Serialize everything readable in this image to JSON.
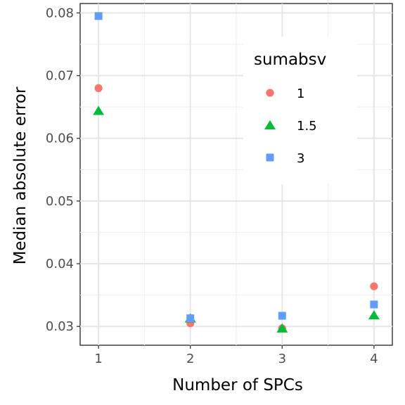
{
  "chart_data": {
    "type": "scatter",
    "xlabel": "Number of SPCs",
    "ylabel": "Median absolute error",
    "x": [
      1,
      2,
      3,
      4
    ],
    "x_ticks": [
      "1",
      "2",
      "3",
      "4"
    ],
    "y_ticks": [
      "0.03",
      "0.04",
      "0.05",
      "0.06",
      "0.07",
      "0.08"
    ],
    "y_tick_values": [
      0.03,
      0.04,
      0.05,
      0.06,
      0.07,
      0.08
    ],
    "xlim": [
      0.8,
      4.2
    ],
    "ylim": [
      0.027,
      0.0815
    ],
    "grid": true,
    "legend": {
      "title": "sumabsv",
      "placement": "top-right (inside plot)"
    },
    "series": [
      {
        "name": "1",
        "shape": "circle",
        "color": "#F8766D",
        "values": [
          0.068,
          0.0305,
          0.0297,
          0.0364
        ]
      },
      {
        "name": "1.5",
        "shape": "triangle",
        "color": "#00BA38",
        "values": [
          0.0644,
          0.0313,
          0.0297,
          0.0318
        ]
      },
      {
        "name": "3",
        "shape": "square",
        "color": "#619CFF",
        "values": [
          0.0795,
          0.0313,
          0.0317,
          0.0335
        ]
      }
    ]
  }
}
